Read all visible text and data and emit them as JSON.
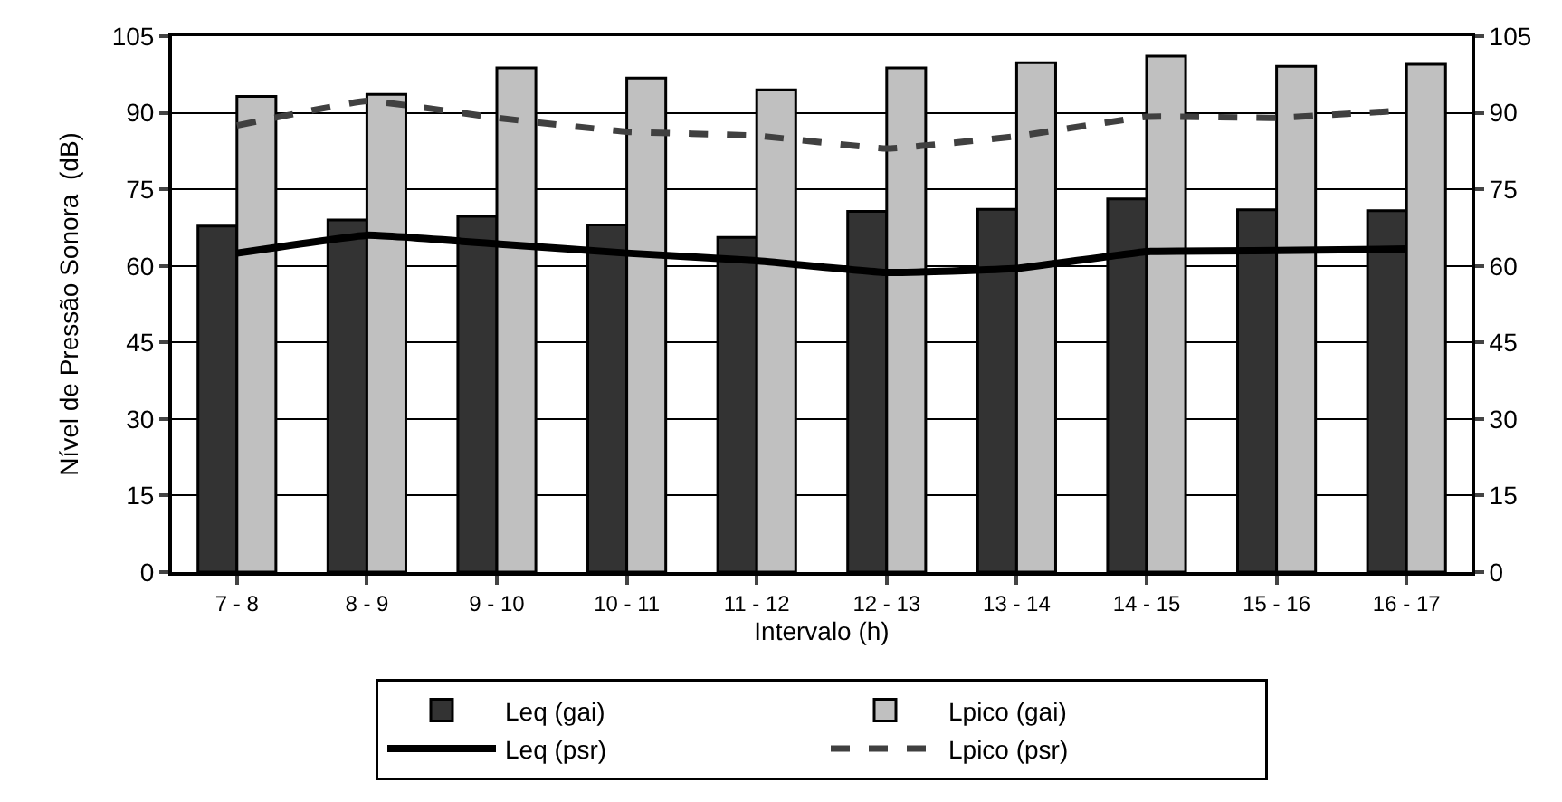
{
  "chart_data": {
    "type": "bar",
    "xlabel": "Intervalo (h)",
    "ylabel": "Nível de Pressão Sonora  (dB)",
    "categories": [
      "7 - 8",
      "8 - 9",
      "9 - 10",
      "10 - 11",
      "11 - 12",
      "12 - 13",
      "13 - 14",
      "14 - 15",
      "15 - 16",
      "16 - 17"
    ],
    "series": [
      {
        "name": "Leq (gai)",
        "color": "#333333",
        "values": [
          67.8,
          69,
          69.7,
          68,
          65.6,
          70.7,
          71.1,
          73.1,
          71,
          70.8
        ]
      },
      {
        "name": "Lpico (gai)",
        "color": "#c0c0c0",
        "values": [
          93.2,
          93.6,
          98.8,
          96.8,
          94.5,
          98.8,
          99.8,
          101.1,
          99.1,
          99.5
        ]
      },
      {
        "name": "Leq (psr)",
        "type": "line",
        "axis": "y2",
        "color": "#000000",
        "line_style": "solid",
        "values": [
          62.5,
          66,
          64.3,
          62.5,
          61,
          58.7,
          59.5,
          62.8,
          63,
          63.3
        ]
      },
      {
        "name": "Lpico (psr)",
        "type": "line",
        "axis": "y2",
        "color": "#404040",
        "line_style": "dashed",
        "values": [
          87.5,
          92.3,
          89,
          86.3,
          85.5,
          83,
          85.4,
          89.2,
          89,
          90.5
        ]
      }
    ],
    "ylim": [
      0,
      105
    ],
    "yticks": [
      0,
      15,
      30,
      45,
      60,
      75,
      90,
      105
    ],
    "y2lim": [
      0,
      105
    ],
    "y2ticks": [
      0,
      15,
      30,
      45,
      60,
      75,
      90,
      105
    ],
    "grid": "y",
    "legend": "bottom",
    "marker": "none"
  }
}
